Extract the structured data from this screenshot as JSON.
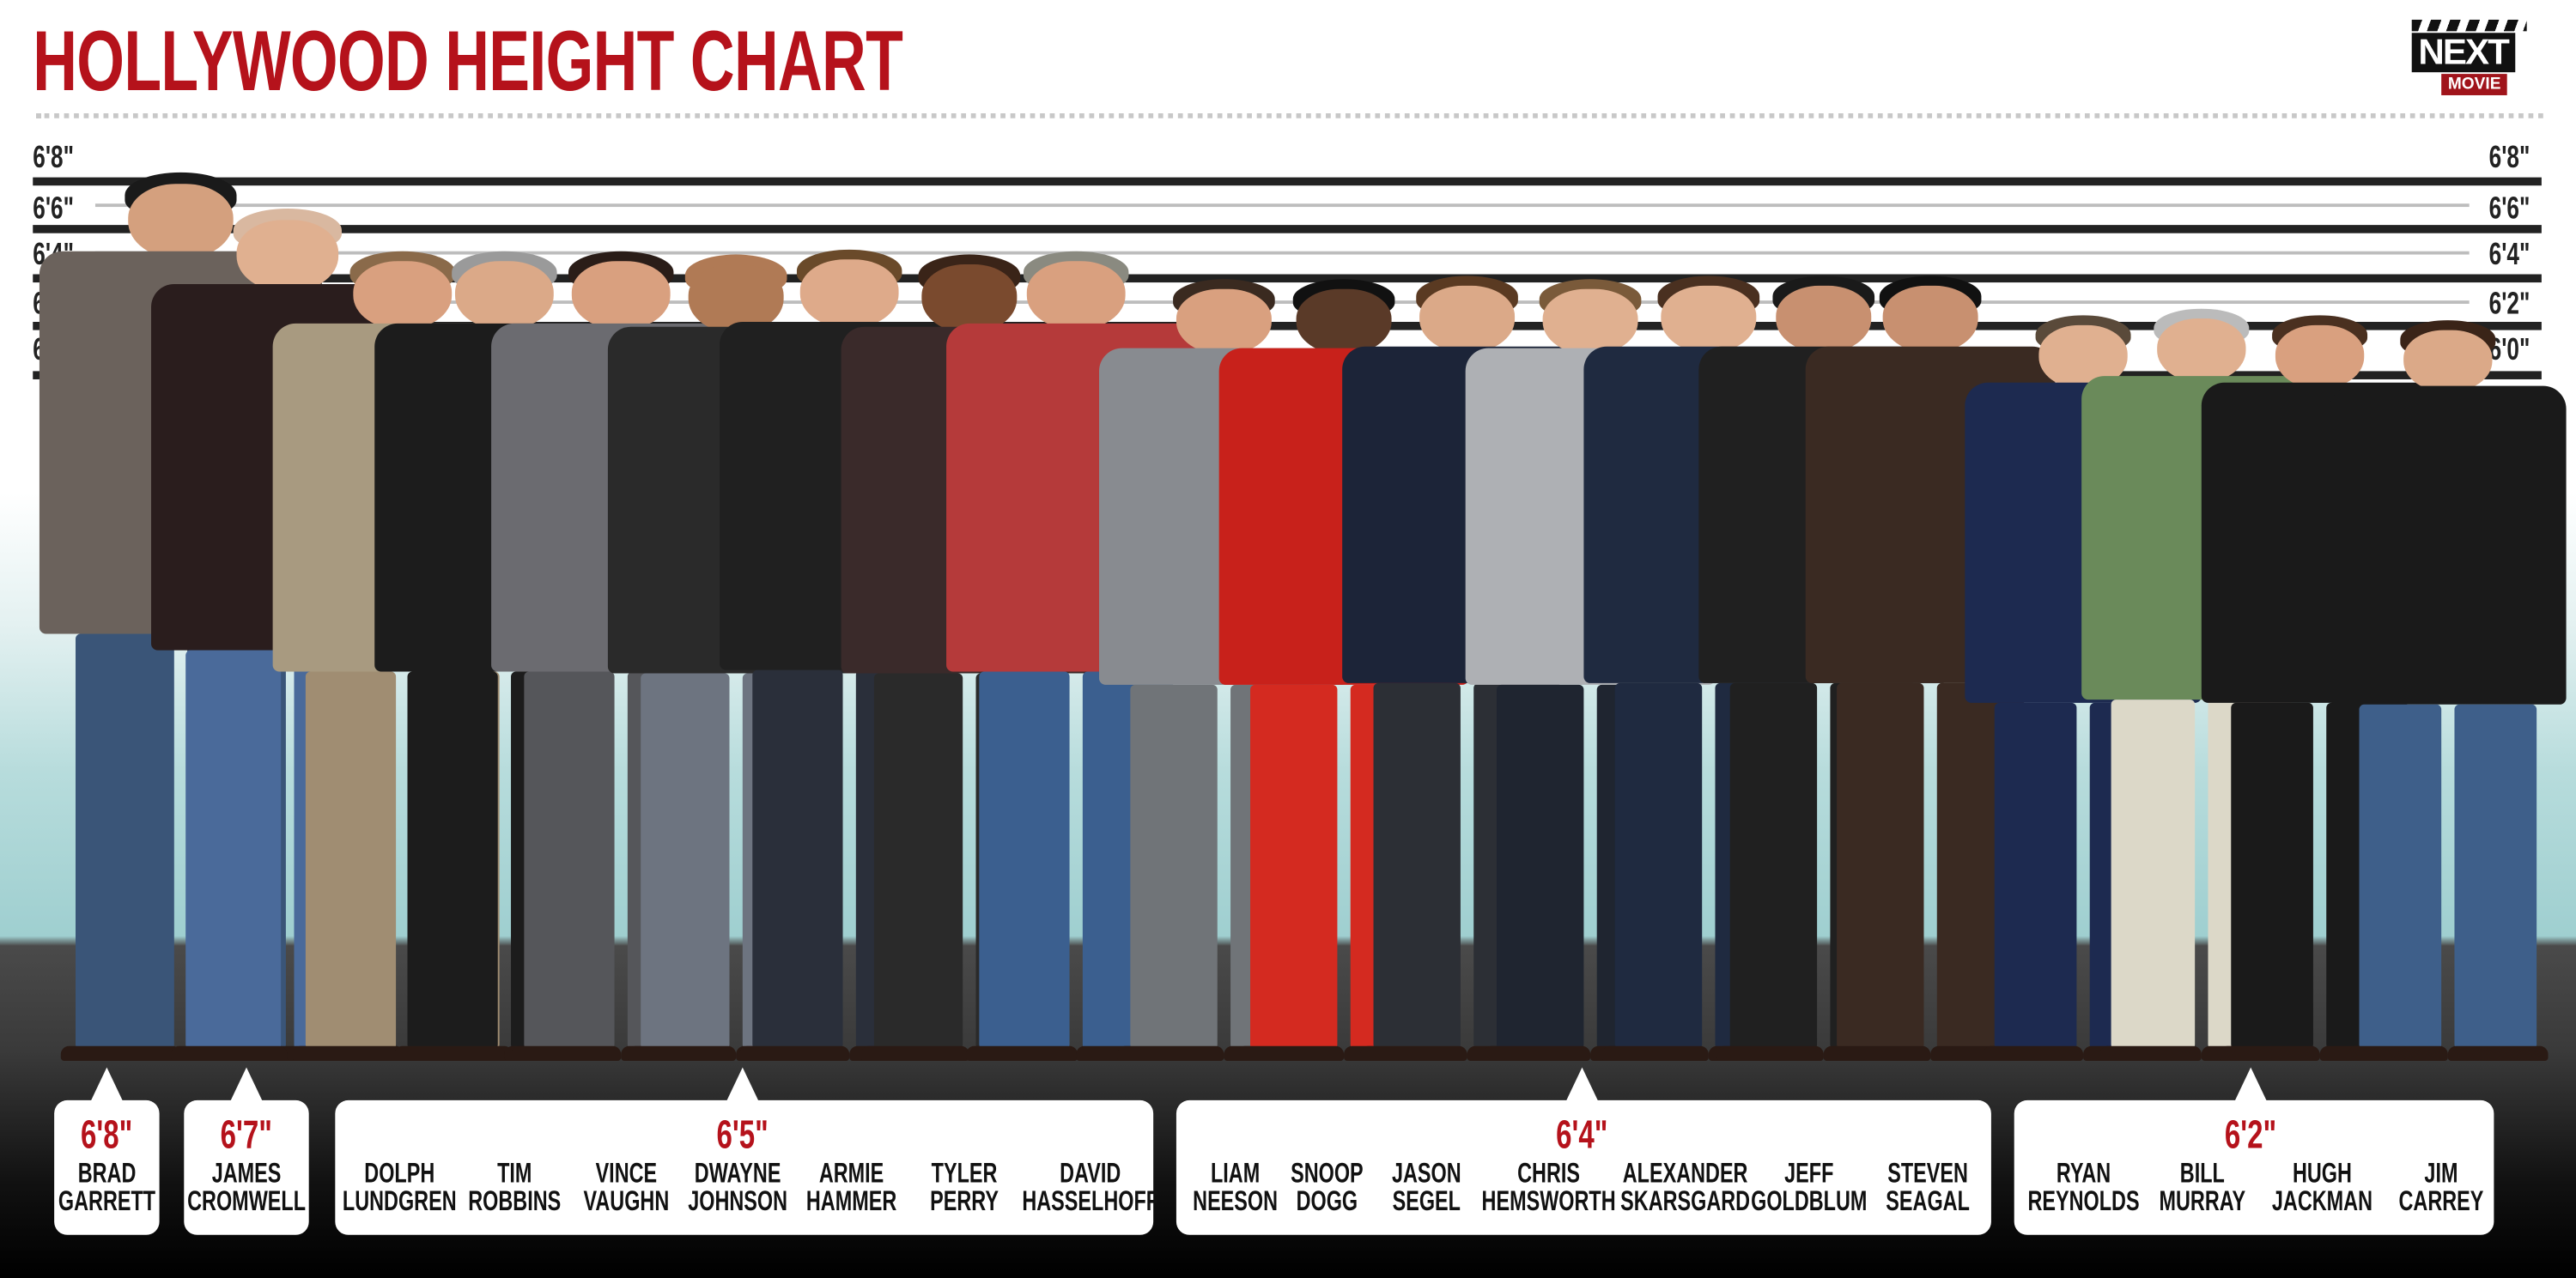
{
  "title": "HOLLYWOOD HEIGHT CHART",
  "logo": {
    "top": "NEXT",
    "bottom": "MOVIE"
  },
  "scale_labels": [
    "6'8\"",
    "6'6\"",
    "6'4\"",
    "6'2\"",
    "6'0\""
  ],
  "colors": {
    "accent": "#b5121b",
    "wall_bottom": "#9fcfd0",
    "floor": "#3a3a3a"
  },
  "groups": [
    {
      "height": "6'8\"",
      "people": [
        {
          "first": "BRAD",
          "last": "GARRETT",
          "shirt": "#6b625c",
          "pants": "#3a5578",
          "skin": "#d4a07e",
          "hair": "#1a1a1a"
        }
      ]
    },
    {
      "height": "6'7\"",
      "people": [
        {
          "first": "JAMES",
          "last": "CROMWELL",
          "shirt": "#2a1d1d",
          "pants": "#4a6a9a",
          "skin": "#e0b090",
          "hair": "#d9b8a0"
        }
      ]
    },
    {
      "height": "6'5\"",
      "people": [
        {
          "first": "DOLPH",
          "last": "LUNDGREN",
          "shirt": "#a89a80",
          "pants": "#a08d72",
          "skin": "#d9a07f",
          "hair": "#8a6a4a"
        },
        {
          "first": "TIM",
          "last": "ROBBINS",
          "shirt": "#1c1c1c",
          "pants": "#1c1c1c",
          "skin": "#dba988",
          "hair": "#9a9a9a"
        },
        {
          "first": "VINCE",
          "last": "VAUGHN",
          "shirt": "#6b6b70",
          "pants": "#55565a",
          "skin": "#d9a07f",
          "hair": "#2a1d18"
        },
        {
          "first": "DWAYNE",
          "last": "JOHNSON",
          "shirt": "#2a2a2a",
          "pants": "#6d7480",
          "skin": "#b07a55",
          "hair": "#b07a55"
        },
        {
          "first": "ARMIE",
          "last": "HAMMER",
          "shirt": "#202020",
          "pants": "#2a2f3a",
          "skin": "#deaa8a",
          "hair": "#6a4a2a"
        },
        {
          "first": "TYLER",
          "last": "PERRY",
          "shirt": "#3a2a2a",
          "pants": "#2a2a2a",
          "skin": "#7a4a2e",
          "hair": "#3a2418"
        },
        {
          "first": "DAVID",
          "last": "HASSELHOFF",
          "shirt": "#b53a3a",
          "pants": "#3b5f8f",
          "skin": "#d9a07f",
          "hair": "#8a8a80"
        }
      ]
    },
    {
      "height": "6'4\"",
      "people": [
        {
          "first": "LIAM",
          "last": "NEESON",
          "shirt": "#888b90",
          "pants": "#707478",
          "skin": "#d9a07f",
          "hair": "#3a2a20"
        },
        {
          "first": "SNOOP",
          "last": "DOGG",
          "shirt": "#c8211b",
          "pants": "#d42a20",
          "skin": "#5a3a28",
          "hair": "#111"
        },
        {
          "first": "JASON",
          "last": "SEGEL",
          "shirt": "#1c2438",
          "pants": "#2c2f35",
          "skin": "#dba988",
          "hair": "#5a3a22"
        },
        {
          "first": "CHRIS",
          "last": "HEMSWORTH",
          "shirt": "#aeb0b4",
          "pants": "#1f2530",
          "skin": "#e0b090",
          "hair": "#7a5a3a"
        },
        {
          "first": "ALEXANDER",
          "last": "SKARSGARD",
          "shirt": "#1f2a40",
          "pants": "#1f2a40",
          "skin": "#e0b090",
          "hair": "#4a3020"
        },
        {
          "first": "JEFF",
          "last": "GOLDBLUM",
          "shirt": "#202020",
          "pants": "#202020",
          "skin": "#c89070",
          "hair": "#1a1a1a"
        },
        {
          "first": "STEVEN",
          "last": "SEAGAL",
          "shirt": "#3a2a22",
          "pants": "#3a2a22",
          "skin": "#c89070",
          "hair": "#111"
        }
      ]
    },
    {
      "height": "6'2\"",
      "people": [
        {
          "first": "RYAN",
          "last": "REYNOLDS",
          "shirt": "#1d2a50",
          "pants": "#1d2a50",
          "skin": "#e0b090",
          "hair": "#5a4a3a"
        },
        {
          "first": "BILL",
          "last": "MURRAY",
          "shirt": "#6a8a5a",
          "pants": "#dcd8c8",
          "skin": "#e0b090",
          "hair": "#bbb"
        },
        {
          "first": "HUGH",
          "last": "JACKMAN",
          "shirt": "#1a1a1a",
          "pants": "#1a1a1a",
          "skin": "#d9a07f",
          "hair": "#4a3020"
        },
        {
          "first": "JIM",
          "last": "CARREY",
          "shirt": "#1a1a1a",
          "pants": "#3e5f8a",
          "skin": "#dba988",
          "hair": "#3a2418"
        }
      ]
    }
  ]
}
